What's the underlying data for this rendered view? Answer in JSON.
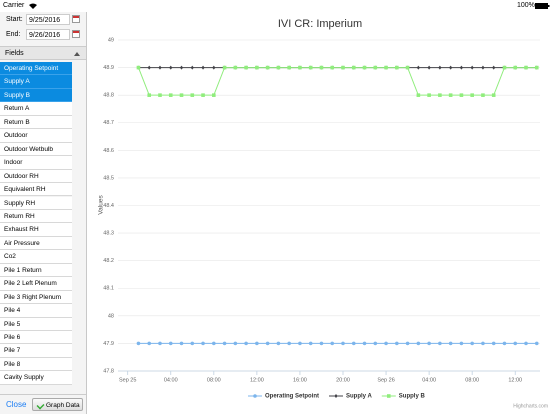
{
  "status_bar": {
    "carrier": "Carrier",
    "battery": "100%"
  },
  "sidebar": {
    "start_label": "Start:",
    "start_date": "9/25/2016",
    "end_label": "End:",
    "end_date": "9/26/2016",
    "fields_header": "Fields",
    "fields": [
      {
        "label": "Operating Setpoint",
        "selected": true
      },
      {
        "label": "Supply A",
        "selected": true
      },
      {
        "label": "Supply B",
        "selected": true
      },
      {
        "label": "Return A",
        "selected": false
      },
      {
        "label": "Return B",
        "selected": false
      },
      {
        "label": "Outdoor",
        "selected": false
      },
      {
        "label": "Outdoor Wetbulb",
        "selected": false
      },
      {
        "label": "Indoor",
        "selected": false
      },
      {
        "label": "Outdoor RH",
        "selected": false
      },
      {
        "label": "Equivalent RH",
        "selected": false
      },
      {
        "label": "Supply RH",
        "selected": false
      },
      {
        "label": "Return RH",
        "selected": false
      },
      {
        "label": "Exhaust RH",
        "selected": false
      },
      {
        "label": "Air Pressure",
        "selected": false
      },
      {
        "label": "Co2",
        "selected": false
      },
      {
        "label": "Pile 1 Return",
        "selected": false
      },
      {
        "label": "Pile 2 Left Plenum",
        "selected": false
      },
      {
        "label": "Pile 3 Right Plenum",
        "selected": false
      },
      {
        "label": "Pile 4",
        "selected": false
      },
      {
        "label": "Pile 5",
        "selected": false
      },
      {
        "label": "Pile 6",
        "selected": false
      },
      {
        "label": "Pile 7",
        "selected": false
      },
      {
        "label": "Pile 8",
        "selected": false
      },
      {
        "label": "Cavity Supply",
        "selected": false
      }
    ],
    "close": "Close",
    "graph_button": "Graph Data"
  },
  "chart_data": {
    "type": "line",
    "title": "IVI CR: Imperium",
    "y_label": "Values",
    "credit": "Highcharts.com",
    "x": [
      1,
      2,
      3,
      4,
      5,
      6,
      7,
      8,
      9,
      10,
      11,
      12,
      13,
      14,
      15,
      16,
      17,
      18,
      19,
      20,
      21,
      22,
      23,
      24,
      25,
      26,
      27,
      28,
      29,
      30,
      31,
      32,
      33,
      34,
      35,
      36,
      37,
      38
    ],
    "xlim": [
      -0.9,
      38.3
    ],
    "xticks": [
      {
        "value": 0,
        "label": "Sep 25"
      },
      {
        "value": 4,
        "label": "04:00"
      },
      {
        "value": 8,
        "label": "08:00"
      },
      {
        "value": 12,
        "label": "12:00"
      },
      {
        "value": 16,
        "label": "16:00"
      },
      {
        "value": 20,
        "label": "20:00"
      },
      {
        "value": 24,
        "label": "Sep 26"
      },
      {
        "value": 28,
        "label": "04:00"
      },
      {
        "value": 32,
        "label": "08:00"
      },
      {
        "value": 36,
        "label": "12:00"
      }
    ],
    "ylim": [
      47.8,
      49
    ],
    "yticks": [
      47.8,
      47.9,
      48,
      48.1,
      48.2,
      48.3,
      48.4,
      48.5,
      48.6,
      48.7,
      48.8,
      48.9,
      49
    ],
    "grid": true,
    "series": [
      {
        "name": "Operating Setpoint",
        "color": "#7cb5ec",
        "marker": "circle",
        "values": [
          47.9,
          47.9,
          47.9,
          47.9,
          47.9,
          47.9,
          47.9,
          47.9,
          47.9,
          47.9,
          47.9,
          47.9,
          47.9,
          47.9,
          47.9,
          47.9,
          47.9,
          47.9,
          47.9,
          47.9,
          47.9,
          47.9,
          47.9,
          47.9,
          47.9,
          47.9,
          47.9,
          47.9,
          47.9,
          47.9,
          47.9,
          47.9,
          47.9,
          47.9,
          47.9,
          47.9,
          47.9,
          47.9
        ]
      },
      {
        "name": "Supply A",
        "color": "#434348",
        "marker": "diamond",
        "values": [
          48.9,
          48.9,
          48.9,
          48.9,
          48.9,
          48.9,
          48.9,
          48.9,
          48.9,
          48.9,
          48.9,
          48.9,
          48.9,
          48.9,
          48.9,
          48.9,
          48.9,
          48.9,
          48.9,
          48.9,
          48.9,
          48.9,
          48.9,
          48.9,
          48.9,
          48.9,
          48.9,
          48.9,
          48.9,
          48.9,
          48.9,
          48.9,
          48.9,
          48.9,
          48.9,
          48.9,
          48.9,
          48.9
        ]
      },
      {
        "name": "Supply B",
        "color": "#90ed7d",
        "marker": "square",
        "values": [
          48.9,
          48.8,
          48.8,
          48.8,
          48.8,
          48.8,
          48.8,
          48.8,
          48.9,
          48.9,
          48.9,
          48.9,
          48.9,
          48.9,
          48.9,
          48.9,
          48.9,
          48.9,
          48.9,
          48.9,
          48.9,
          48.9,
          48.9,
          48.9,
          48.9,
          48.9,
          48.8,
          48.8,
          48.8,
          48.8,
          48.8,
          48.8,
          48.8,
          48.8,
          48.9,
          48.9,
          48.9,
          48.9
        ]
      }
    ]
  }
}
